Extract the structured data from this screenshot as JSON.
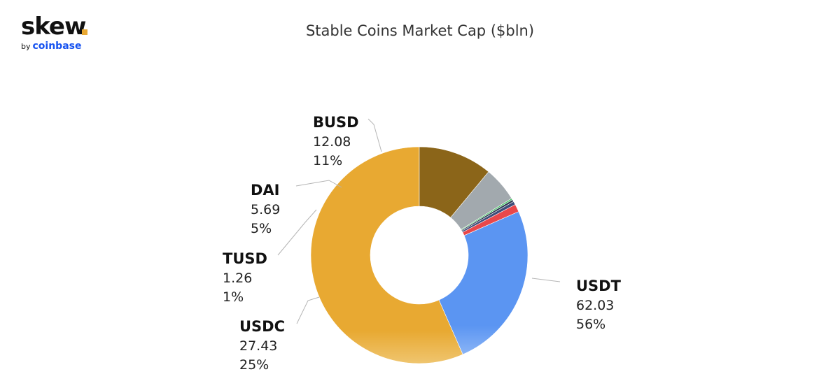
{
  "logo": {
    "main": "skew",
    "by": "by",
    "brand": "coinbase",
    "dot_color": "#e8a833",
    "brand_color": "#1652f0"
  },
  "chart_data": {
    "type": "pie",
    "style": "donut",
    "title": "Stable Coins Market Cap ($bln)",
    "slices": [
      {
        "name": "USDT",
        "value": 62.03,
        "percent_label": "56%",
        "value_label": "62.03",
        "color": "#e8a932",
        "labeled": true
      },
      {
        "name": "USDC",
        "value": 27.43,
        "percent_label": "25%",
        "value_label": "27.43",
        "color": "#5b95f2",
        "labeled": true
      },
      {
        "name": "TUSD",
        "value": 1.26,
        "percent_label": "1%",
        "value_label": "1.26",
        "color": "#e9474a",
        "labeled": true
      },
      {
        "name": "",
        "value": 0.55,
        "color": "#3f4d7a",
        "labeled": false
      },
      {
        "name": "",
        "value": 0.35,
        "color": "#2e3b52",
        "labeled": false
      },
      {
        "name": "",
        "value": 0.25,
        "color": "#3fbf5f",
        "labeled": false
      },
      {
        "name": "DAI",
        "value": 5.69,
        "percent_label": "5%",
        "value_label": "5.69",
        "color": "#a2a9ae",
        "labeled": true
      },
      {
        "name": "BUSD",
        "value": 12.08,
        "percent_label": "11%",
        "value_label": "12.08",
        "color": "#8b6519",
        "labeled": true
      }
    ],
    "start": "top",
    "direction": "counter-clockwise",
    "legend": "none"
  }
}
